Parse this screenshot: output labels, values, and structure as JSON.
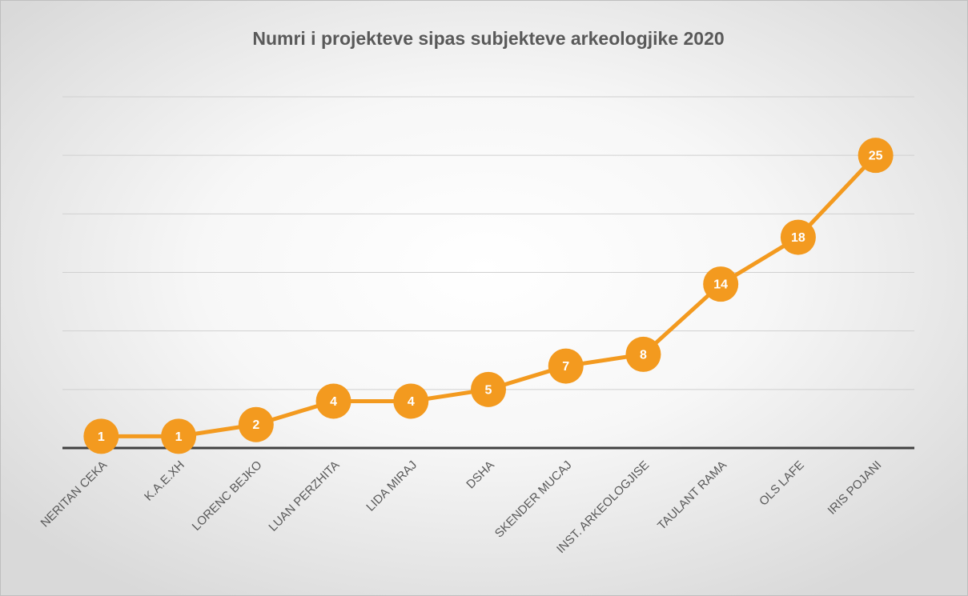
{
  "chart_data": {
    "type": "line",
    "title": "Numri i projekteve sipas subjekteve arkeologjike 2020",
    "categories": [
      "NERITAN CEKA",
      "K.A.E.XH",
      "LORENC BEJKO",
      "LUAN PERZHITA",
      "LIDA MIRAJ",
      "DSHA",
      "SKENDER MUCAJ",
      "INST. ARKEOLOGJISE",
      "TAULANT RAMA",
      "OLS LAFE",
      "IRIS POJANI"
    ],
    "series": [
      {
        "name": "Numri i projekteve",
        "color": "#f39a1f",
        "values": [
          1,
          1,
          2,
          4,
          4,
          5,
          7,
          8,
          14,
          18,
          25
        ]
      }
    ],
    "ylim": [
      0,
      30
    ],
    "yticks": [
      0,
      5,
      10,
      15,
      20,
      25,
      30
    ],
    "grid": true
  }
}
